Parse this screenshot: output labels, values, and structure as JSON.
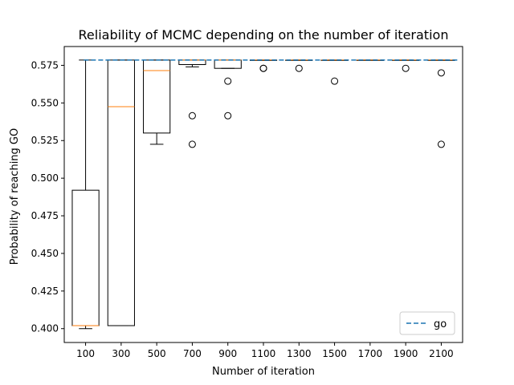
{
  "chart_data": {
    "type": "box",
    "title": "Reliability of MCMC depending on the number of iteration",
    "xlabel": "Number of iteration",
    "ylabel": "Probability of reaching GO",
    "ylim": [
      0.3908,
      0.5875
    ],
    "yticks": [
      0.4,
      0.425,
      0.45,
      0.475,
      0.5,
      0.525,
      0.55,
      0.575
    ],
    "ytick_labels": [
      "0.400",
      "0.425",
      "0.450",
      "0.475",
      "0.500",
      "0.525",
      "0.550",
      "0.575"
    ],
    "categories": [
      "100",
      "300",
      "500",
      "700",
      "900",
      "1100",
      "1300",
      "1500",
      "1700",
      "1900",
      "2100"
    ],
    "boxes": [
      {
        "whislo": 0.4,
        "q1": 0.402,
        "med": 0.402,
        "q3": 0.492,
        "whishi": 0.5785,
        "fliers": []
      },
      {
        "whislo": 0.402,
        "q1": 0.402,
        "med": 0.5475,
        "q3": 0.5785,
        "whishi": 0.5785,
        "fliers": []
      },
      {
        "whislo": 0.5225,
        "q1": 0.53,
        "med": 0.5715,
        "q3": 0.5785,
        "whishi": 0.5785,
        "fliers": []
      },
      {
        "whislo": 0.574,
        "q1": 0.5755,
        "med": 0.5785,
        "q3": 0.5785,
        "whishi": 0.5785,
        "fliers": [
          0.5415,
          0.5225
        ]
      },
      {
        "whislo": 0.573,
        "q1": 0.573,
        "med": 0.5785,
        "q3": 0.5785,
        "whishi": 0.5785,
        "fliers": [
          0.5645,
          0.5415
        ]
      },
      {
        "whislo": 0.5785,
        "q1": 0.5785,
        "med": 0.5785,
        "q3": 0.5785,
        "whishi": 0.5785,
        "fliers": [
          0.573,
          0.573
        ]
      },
      {
        "whislo": 0.5785,
        "q1": 0.5785,
        "med": 0.5785,
        "q3": 0.5785,
        "whishi": 0.5785,
        "fliers": [
          0.573
        ]
      },
      {
        "whislo": 0.5785,
        "q1": 0.5785,
        "med": 0.5785,
        "q3": 0.5785,
        "whishi": 0.5785,
        "fliers": [
          0.5645
        ]
      },
      {
        "whislo": 0.5785,
        "q1": 0.5785,
        "med": 0.5785,
        "q3": 0.5785,
        "whishi": 0.5785,
        "fliers": []
      },
      {
        "whislo": 0.5785,
        "q1": 0.5785,
        "med": 0.5785,
        "q3": 0.5785,
        "whishi": 0.5785,
        "fliers": [
          0.573
        ]
      },
      {
        "whislo": 0.5785,
        "q1": 0.5785,
        "med": 0.5785,
        "q3": 0.5785,
        "whishi": 0.5785,
        "fliers": [
          0.57,
          0.5225
        ]
      }
    ],
    "reference_line": {
      "name": "go",
      "value": 0.5785,
      "style": "dashed",
      "color": "#1f77b4"
    },
    "median_color": "#ff7f0e",
    "box_color": "#000000",
    "legend": {
      "position": "lower-right",
      "entries": [
        "go"
      ]
    },
    "grid": false
  }
}
